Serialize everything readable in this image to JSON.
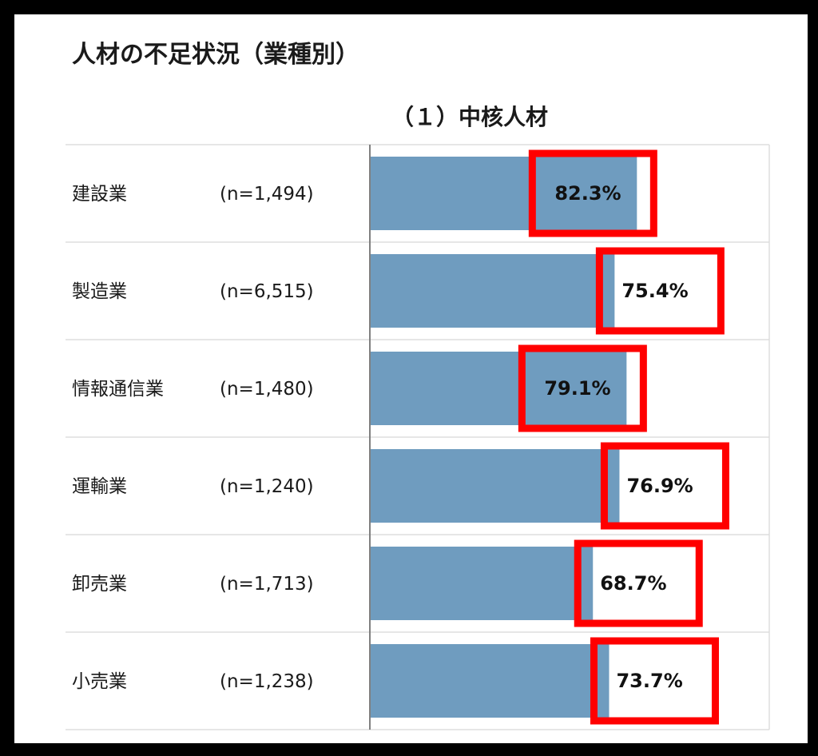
{
  "page_title": "人材の不足状況（業種別）",
  "chart_data": {
    "type": "bar",
    "orientation": "horizontal",
    "title": "（１）中核人材",
    "categories": [
      "建設業",
      "製造業",
      "情報通信業",
      "運輸業",
      "卸売業",
      "小売業"
    ],
    "sample_sizes": [
      "(n=1,494)",
      "(n=6,515)",
      "(n=1,480)",
      "(n=1,240)",
      "(n=1,713)",
      "(n=1,238)"
    ],
    "values": [
      82.3,
      75.4,
      79.1,
      76.9,
      68.7,
      73.7
    ],
    "value_labels": [
      "82.3%",
      "75.4%",
      "79.1%",
      "76.9%",
      "68.7%",
      "73.7%"
    ],
    "xlim": [
      0,
      100
    ],
    "bar_color": "#6f9cbf",
    "highlight_color": "#ff0000",
    "legend": "none",
    "grid": false
  }
}
